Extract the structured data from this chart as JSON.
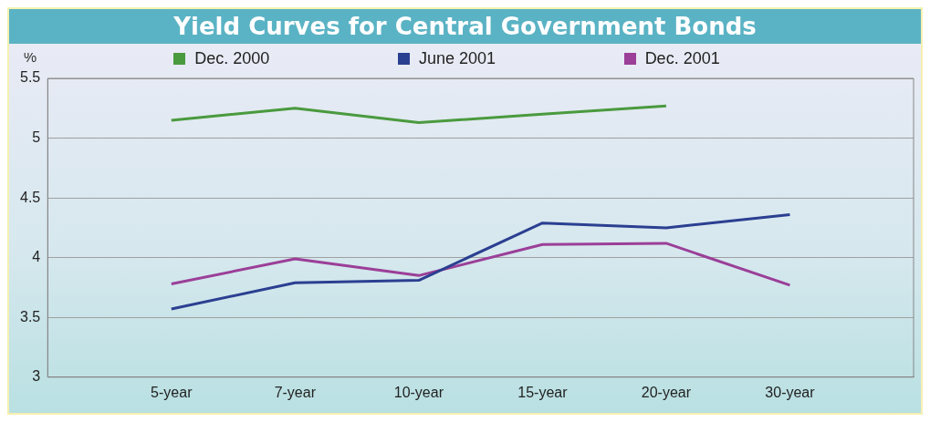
{
  "chart_data": {
    "type": "line",
    "title": "Yield Curves for Central Government Bonds",
    "ylabel": "%",
    "categories": [
      null,
      "5-year",
      "7-year",
      "10-year",
      "15-year",
      "20-year",
      "30-year",
      null
    ],
    "series": [
      {
        "name": "Dec. 2000",
        "color": "#4a9a3e",
        "values": [
          null,
          5.15,
          5.25,
          5.13,
          5.2,
          5.27,
          null,
          null
        ]
      },
      {
        "name": "June 2001",
        "color": "#2b3f91",
        "values": [
          null,
          3.57,
          3.79,
          3.81,
          4.29,
          4.25,
          4.36,
          null
        ]
      },
      {
        "name": "Dec. 2001",
        "color": "#9b3f98",
        "values": [
          null,
          3.78,
          3.99,
          3.85,
          4.11,
          4.12,
          3.77,
          null
        ]
      }
    ],
    "ylim": [
      3,
      5.5
    ],
    "yticks": [
      3,
      3.5,
      4,
      4.5,
      5,
      5.5
    ],
    "grid": "y",
    "legend": "top",
    "marker": "none",
    "line_style": "solid"
  }
}
